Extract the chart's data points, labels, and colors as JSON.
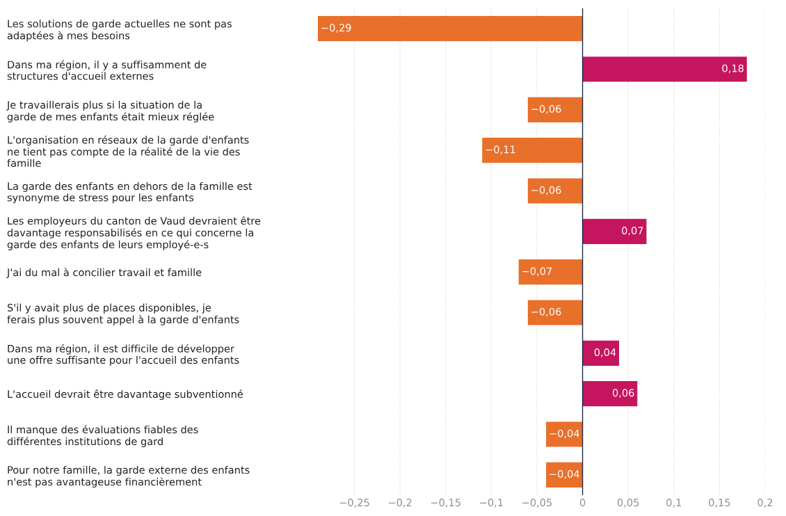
{
  "chart_data": {
    "type": "bar",
    "orientation": "horizontal",
    "categories": [
      "Les solutions de garde actuelles ne sont pas adaptées à mes besoins",
      "Dans ma région, il y a suffisamment de structures d'accueil externes",
      "Je travaillerais plus si la situation de la garde de mes enfants était mieux réglée",
      "L'organisation en réseaux de la garde d'enfants ne tient pas compte de la réalité de la vie des famille",
      "La garde des enfants en dehors de la famille est synonyme de stress pour les enfants",
      "Les employeurs du canton de Vaud devraient être davantage responsabilisés en ce qui concerne la garde des enfants de leurs employé-e-s",
      "J'ai du mal à concilier travail et famille",
      "S'il y avait plus de places disponibles, je ferais plus souvent appel à la garde d'enfants",
      "Dans ma région, il est difficile de développer une offre suffisante pour l'accueil des enfants",
      "L'accueil devrait être davantage subventionné",
      "Il manque des évaluations fiables des différentes institutions de gard",
      "Pour notre famille, la garde externe des enfants n'est pas avantageuse financièrement"
    ],
    "values": [
      -0.29,
      0.18,
      -0.06,
      -0.11,
      -0.06,
      0.07,
      -0.07,
      -0.06,
      0.04,
      0.06,
      -0.04,
      -0.04
    ],
    "value_labels": [
      "−0,29",
      "0,18",
      "−0,06",
      "−0,11",
      "−0,06",
      "0,07",
      "−0,07",
      "−0,06",
      "0,04",
      "0,06",
      "−0,04",
      "−0,04"
    ],
    "colors": [
      "#e8702a",
      "#c4155e",
      "#e8702a",
      "#e8702a",
      "#e8702a",
      "#c4155e",
      "#e8702a",
      "#e8702a",
      "#c4155e",
      "#c4155e",
      "#e8702a",
      "#e8702a"
    ],
    "xlim": [
      -0.29,
      0.2
    ],
    "xticks": [
      {
        "value": -0.25,
        "label": "−0,25"
      },
      {
        "value": -0.2,
        "label": "−0,2"
      },
      {
        "value": -0.15,
        "label": "−0,15"
      },
      {
        "value": -0.1,
        "label": "−0,1"
      },
      {
        "value": -0.05,
        "label": "−0,05"
      },
      {
        "value": 0,
        "label": "0"
      },
      {
        "value": 0.05,
        "label": "0,05"
      },
      {
        "value": 0.1,
        "label": "0,1"
      },
      {
        "value": 0.15,
        "label": "0,15"
      },
      {
        "value": 0.2,
        "label": "0,2"
      }
    ],
    "ref_lines": [
      {
        "axis": "x",
        "value": 0,
        "color": "#1f2a44"
      }
    ],
    "grid": "x"
  }
}
